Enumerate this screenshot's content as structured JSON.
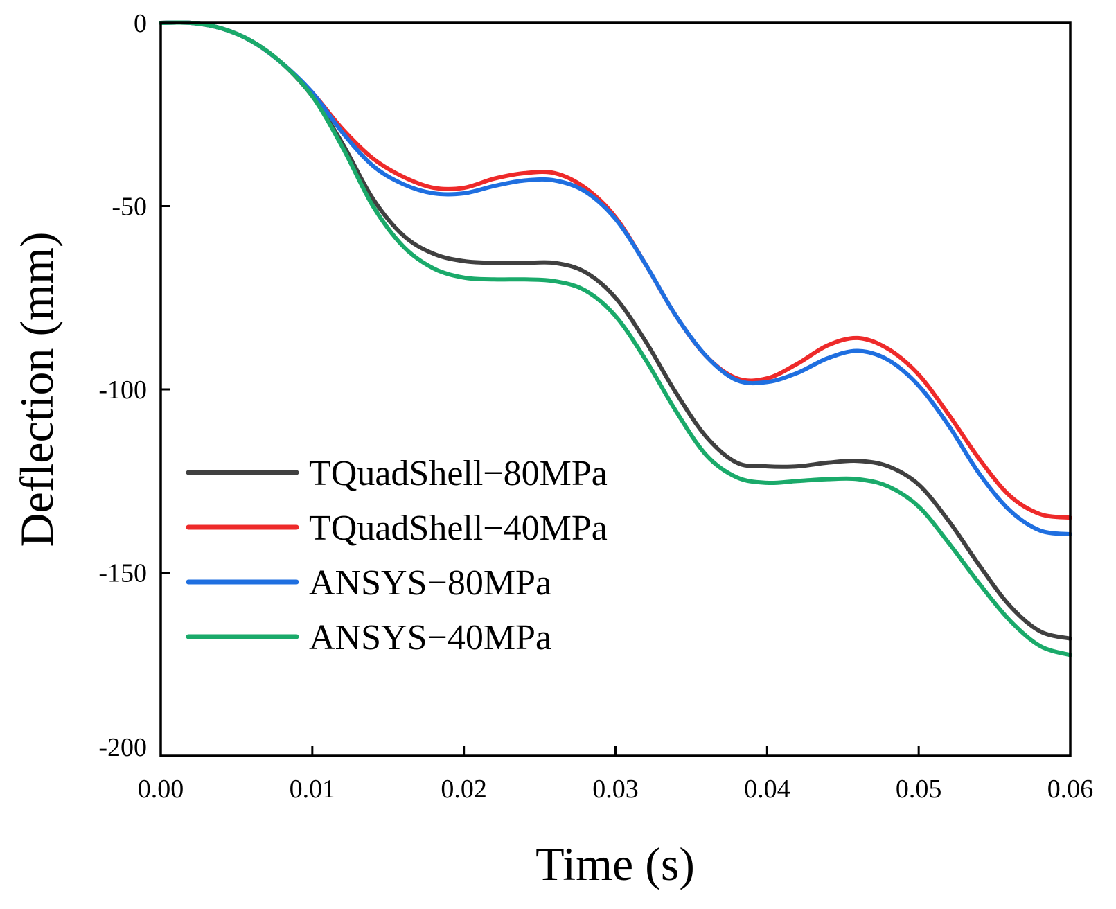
{
  "chart_data": {
    "type": "line",
    "title": "",
    "xlabel": "Time (s)",
    "ylabel": "Deflection (mm)",
    "xlim": [
      0,
      0.06
    ],
    "ylim": [
      -200,
      0
    ],
    "x_ticks": [
      "0.00",
      "0.01",
      "0.02",
      "0.03",
      "0.04",
      "0.05",
      "0.06"
    ],
    "y_ticks": [
      "0",
      "-50",
      "-100",
      "-150",
      "-200"
    ],
    "grid": false,
    "legend_position": "lower-left",
    "series": [
      {
        "name": "TQuadShell−80MPa",
        "color": "#404040",
        "x": [
          0,
          0.002,
          0.004,
          0.006,
          0.008,
          0.01,
          0.012,
          0.014,
          0.016,
          0.018,
          0.02,
          0.022,
          0.024,
          0.026,
          0.028,
          0.03,
          0.032,
          0.034,
          0.036,
          0.038,
          0.04,
          0.042,
          0.044,
          0.046,
          0.048,
          0.05,
          0.052,
          0.054,
          0.056,
          0.058,
          0.06
        ],
        "y": [
          0,
          0,
          -1.5,
          -5,
          -11,
          -20,
          -33,
          -48,
          -58,
          -63,
          -65,
          -65.5,
          -65.5,
          -65.5,
          -68,
          -75,
          -87,
          -101,
          -113,
          -120,
          -121,
          -121,
          -120,
          -119.5,
          -121,
          -126,
          -136,
          -148,
          -159,
          -166,
          -168
        ]
      },
      {
        "name": "TQuadShell−40MPa",
        "color": "#ee2a2a",
        "x": [
          0,
          0.002,
          0.004,
          0.006,
          0.008,
          0.01,
          0.012,
          0.014,
          0.016,
          0.018,
          0.02,
          0.022,
          0.024,
          0.026,
          0.028,
          0.03,
          0.032,
          0.034,
          0.036,
          0.038,
          0.04,
          0.042,
          0.044,
          0.046,
          0.048,
          0.05,
          0.052,
          0.054,
          0.056,
          0.058,
          0.06
        ],
        "y": [
          0,
          0,
          -1.5,
          -5,
          -11,
          -19,
          -29,
          -37,
          -42,
          -45,
          -45,
          -42.5,
          -41,
          -41,
          -45,
          -53,
          -66,
          -80,
          -91,
          -97,
          -97,
          -93,
          -88,
          -86,
          -89,
          -96,
          -107,
          -119,
          -129,
          -134,
          -135
        ]
      },
      {
        "name": "ANSYS−80MPa",
        "color": "#1f6fe0",
        "x": [
          0,
          0.002,
          0.004,
          0.006,
          0.008,
          0.01,
          0.012,
          0.014,
          0.016,
          0.018,
          0.02,
          0.022,
          0.024,
          0.026,
          0.028,
          0.03,
          0.032,
          0.034,
          0.036,
          0.038,
          0.04,
          0.042,
          0.044,
          0.046,
          0.048,
          0.05,
          0.052,
          0.054,
          0.056,
          0.058,
          0.06
        ],
        "y": [
          0,
          0,
          -1.5,
          -5,
          -11,
          -19,
          -30,
          -39,
          -44,
          -46.5,
          -46.5,
          -44.5,
          -43,
          -43,
          -46,
          -53.5,
          -66,
          -80,
          -91,
          -97.5,
          -98,
          -95.5,
          -91.5,
          -89.5,
          -92,
          -99,
          -110,
          -123,
          -133,
          -138.5,
          -139.5
        ]
      },
      {
        "name": "ANSYS−40MPa",
        "color": "#1aaa6a",
        "x": [
          0,
          0.002,
          0.004,
          0.006,
          0.008,
          0.01,
          0.012,
          0.014,
          0.016,
          0.018,
          0.02,
          0.022,
          0.024,
          0.026,
          0.028,
          0.03,
          0.032,
          0.034,
          0.036,
          0.038,
          0.04,
          0.042,
          0.044,
          0.046,
          0.048,
          0.05,
          0.052,
          0.054,
          0.056,
          0.058,
          0.06
        ],
        "y": [
          0,
          0,
          -1.5,
          -5,
          -11,
          -20,
          -34,
          -50,
          -61,
          -67,
          -69.5,
          -70,
          -70,
          -70.5,
          -73,
          -80,
          -92,
          -106,
          -118,
          -124,
          -125.5,
          -125,
          -124.5,
          -124.5,
          -126.5,
          -132,
          -142,
          -153,
          -163,
          -170,
          -172.5
        ]
      }
    ]
  }
}
